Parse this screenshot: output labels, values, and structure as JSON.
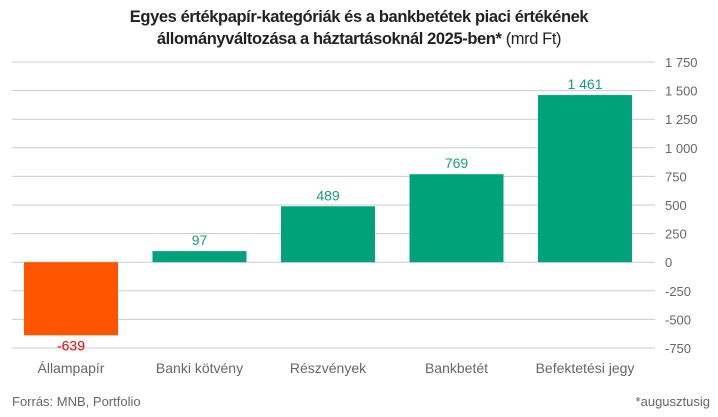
{
  "chart_data": {
    "type": "bar",
    "title_line1": "Egyes értékpapír-kategóriák és a bankbetétek piaci értékének",
    "title_line2": "állományváltozása a háztartásoknál 2025-ben*",
    "title_unit": "(mrd Ft)",
    "categories": [
      "Állampapír",
      "Banki kötvény",
      "Részvények",
      "Bankbetét",
      "Befektetési jegy"
    ],
    "values": [
      -639,
      97,
      489,
      769,
      1461
    ],
    "value_labels": [
      "-639",
      "97",
      "489",
      "769",
      "1 461"
    ],
    "ylim": [
      -750,
      1750
    ],
    "yticks": [
      -750,
      -500,
      -250,
      0,
      250,
      500,
      750,
      1000,
      1250,
      1500,
      1750
    ],
    "ytick_labels": [
      "-750",
      "-500",
      "-250",
      "0",
      "250",
      "500",
      "750",
      "1 000",
      "1 250",
      "1 500",
      "1 750"
    ],
    "y_axis_side": "right",
    "grid": true,
    "colors": {
      "positive": "#00a27a",
      "negative": "#ff5500",
      "positive_label": "#1a9e78",
      "negative_label": "#ff0000"
    }
  },
  "footer": {
    "source": "Forrás: MNB, Portfolio",
    "note": "*augusztusig"
  }
}
